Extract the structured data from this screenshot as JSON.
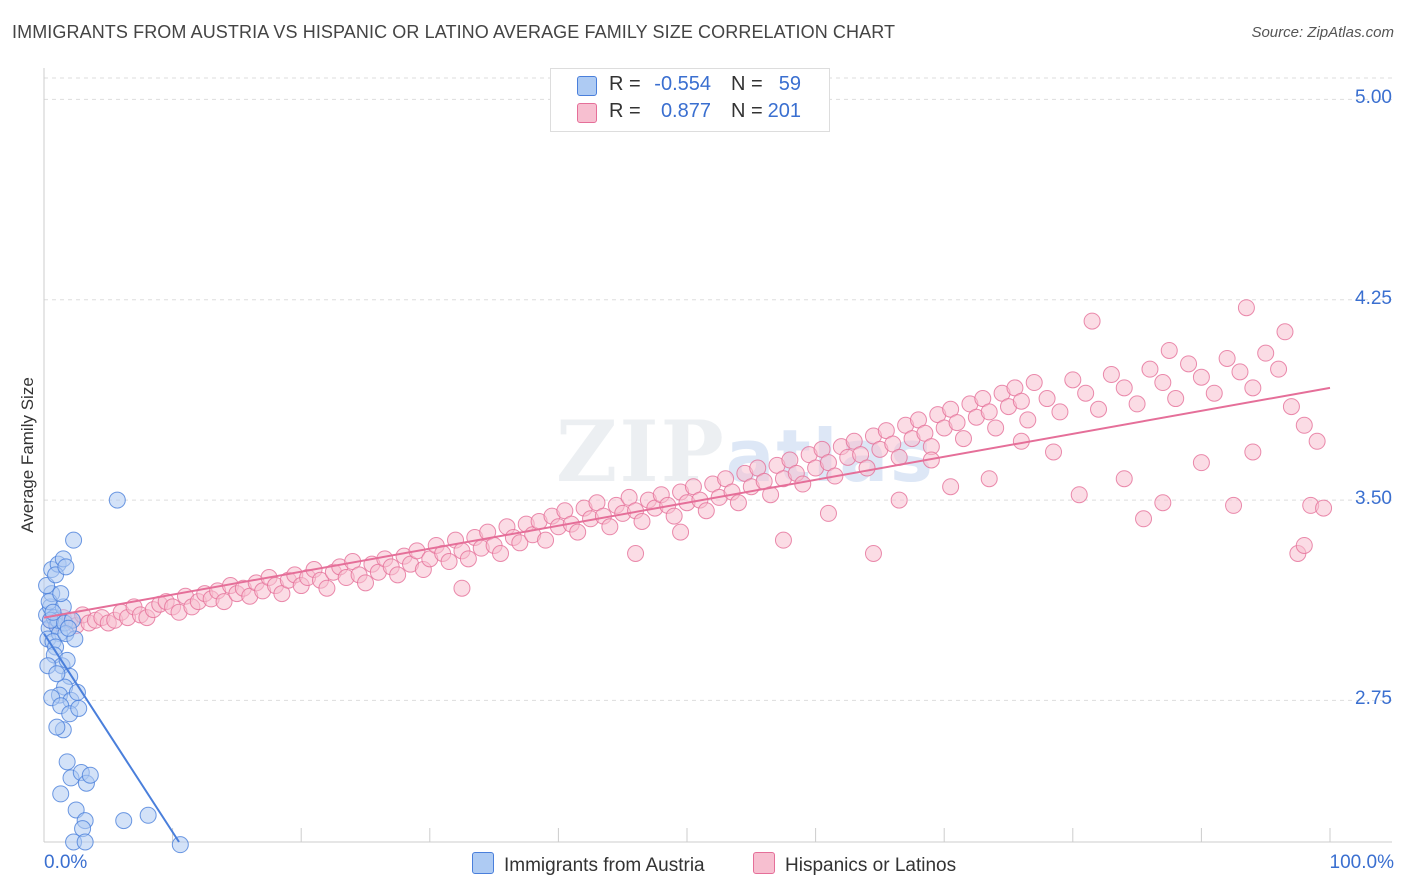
{
  "title": "IMMIGRANTS FROM AUSTRIA VS HISPANIC OR LATINO AVERAGE FAMILY SIZE CORRELATION CHART",
  "source": "Source: ZipAtlas.com",
  "watermark": {
    "zip": "ZIP",
    "atlas": "atlas"
  },
  "colors": {
    "blue": "#4a7fdb",
    "blue_fill": "#aecbf3",
    "pink": "#e56f99",
    "pink_fill": "#f7bfd0",
    "grid": "#dddddd",
    "axis_text": "#3a6fd0"
  },
  "legend_top": {
    "rows": [
      {
        "r_label": "R =",
        "r_value": "-0.554",
        "n_label": "N =",
        "n_value": "59",
        "series": "blue"
      },
      {
        "r_label": "R =",
        "r_value": "0.877",
        "n_label": "N =",
        "n_value": "201",
        "series": "pink"
      }
    ]
  },
  "legend_bottom": [
    {
      "label": "Immigrants from Austria",
      "series": "blue"
    },
    {
      "label": "Hispanics or Latinos",
      "series": "pink"
    }
  ],
  "chart_data": {
    "type": "scatter",
    "title": "IMMIGRANTS FROM AUSTRIA VS HISPANIC OR LATINO AVERAGE FAMILY SIZE CORRELATION CHART",
    "xlabel": "",
    "ylabel": "Average Family Size",
    "xlim": [
      0,
      100
    ],
    "ylim": [
      2.22,
      5.08
    ],
    "x_tick_labels": {
      "left": "0.0%",
      "right": "100.0%"
    },
    "y_ticks": [
      2.75,
      3.5,
      4.25,
      5.0
    ],
    "y_tick_labels": [
      "2.75",
      "3.50",
      "4.25",
      "5.00"
    ],
    "series": [
      {
        "name": "Immigrants from Austria",
        "color": "blue",
        "R": -0.554,
        "N": 59,
        "trend": {
          "x": [
            0,
            10.5
          ],
          "y": [
            3.0,
            2.22
          ]
        },
        "points": [
          [
            0.2,
            3.07
          ],
          [
            0.4,
            3.02
          ],
          [
            0.3,
            2.98
          ],
          [
            0.5,
            3.1
          ],
          [
            0.6,
            3.15
          ],
          [
            0.2,
            3.18
          ],
          [
            0.8,
            3.06
          ],
          [
            1.0,
            3.03
          ],
          [
            1.2,
            3.0
          ],
          [
            0.7,
            2.97
          ],
          [
            0.9,
            2.95
          ],
          [
            1.1,
            3.05
          ],
          [
            0.4,
            3.12
          ],
          [
            1.5,
            3.1
          ],
          [
            1.3,
            3.15
          ],
          [
            0.6,
            3.24
          ],
          [
            1.1,
            3.26
          ],
          [
            0.9,
            3.22
          ],
          [
            1.5,
            3.28
          ],
          [
            1.7,
            3.25
          ],
          [
            2.3,
            3.35
          ],
          [
            0.8,
            2.92
          ],
          [
            1.4,
            2.88
          ],
          [
            1.8,
            2.9
          ],
          [
            2.0,
            2.84
          ],
          [
            1.6,
            2.8
          ],
          [
            1.2,
            2.77
          ],
          [
            2.1,
            2.75
          ],
          [
            2.6,
            2.78
          ],
          [
            0.6,
            2.76
          ],
          [
            1.3,
            2.73
          ],
          [
            2.0,
            2.7
          ],
          [
            2.7,
            2.72
          ],
          [
            1.5,
            2.64
          ],
          [
            1.0,
            2.65
          ],
          [
            1.8,
            2.52
          ],
          [
            2.1,
            2.46
          ],
          [
            2.9,
            2.48
          ],
          [
            3.3,
            2.44
          ],
          [
            3.6,
            2.47
          ],
          [
            1.3,
            2.4
          ],
          [
            2.5,
            2.34
          ],
          [
            3.2,
            2.3
          ],
          [
            3.0,
            2.27
          ],
          [
            6.2,
            2.3
          ],
          [
            8.1,
            2.32
          ],
          [
            2.3,
            2.22
          ],
          [
            3.2,
            2.22
          ],
          [
            10.6,
            2.21
          ],
          [
            5.7,
            3.5
          ],
          [
            0.5,
            3.05
          ],
          [
            1.6,
            3.04
          ],
          [
            2.2,
            3.05
          ],
          [
            0.3,
            2.88
          ],
          [
            1.0,
            2.85
          ],
          [
            1.7,
            3.0
          ],
          [
            0.7,
            3.08
          ],
          [
            2.4,
            2.98
          ],
          [
            1.9,
            3.02
          ]
        ]
      },
      {
        "name": "Hispanics or Latinos",
        "color": "pink",
        "R": 0.877,
        "N": 201,
        "trend": {
          "x": [
            0,
            100
          ],
          "y": [
            3.06,
            3.92
          ]
        },
        "points": [
          [
            0.5,
            3.05
          ],
          [
            1.0,
            3.04
          ],
          [
            1.5,
            3.06
          ],
          [
            2.0,
            3.05
          ],
          [
            2.5,
            3.03
          ],
          [
            3.0,
            3.07
          ],
          [
            3.5,
            3.04
          ],
          [
            4.0,
            3.05
          ],
          [
            4.5,
            3.06
          ],
          [
            5.0,
            3.04
          ],
          [
            5.5,
            3.05
          ],
          [
            6.0,
            3.08
          ],
          [
            6.5,
            3.06
          ],
          [
            7.0,
            3.1
          ],
          [
            7.5,
            3.07
          ],
          [
            8.0,
            3.06
          ],
          [
            8.5,
            3.09
          ],
          [
            9.0,
            3.11
          ],
          [
            9.5,
            3.12
          ],
          [
            10.0,
            3.1
          ],
          [
            10.5,
            3.08
          ],
          [
            11.0,
            3.14
          ],
          [
            11.5,
            3.1
          ],
          [
            12.0,
            3.12
          ],
          [
            12.5,
            3.15
          ],
          [
            13.0,
            3.13
          ],
          [
            13.5,
            3.16
          ],
          [
            14.0,
            3.12
          ],
          [
            14.5,
            3.18
          ],
          [
            15.0,
            3.15
          ],
          [
            15.5,
            3.17
          ],
          [
            16.0,
            3.14
          ],
          [
            16.5,
            3.19
          ],
          [
            17.0,
            3.16
          ],
          [
            17.5,
            3.21
          ],
          [
            18.0,
            3.18
          ],
          [
            18.5,
            3.15
          ],
          [
            19.0,
            3.2
          ],
          [
            19.5,
            3.22
          ],
          [
            20.0,
            3.18
          ],
          [
            20.5,
            3.21
          ],
          [
            21.0,
            3.24
          ],
          [
            21.5,
            3.2
          ],
          [
            22.0,
            3.17
          ],
          [
            22.5,
            3.23
          ],
          [
            23.0,
            3.25
          ],
          [
            23.5,
            3.21
          ],
          [
            24.0,
            3.27
          ],
          [
            24.5,
            3.22
          ],
          [
            25.0,
            3.19
          ],
          [
            25.5,
            3.26
          ],
          [
            26.0,
            3.23
          ],
          [
            26.5,
            3.28
          ],
          [
            27.0,
            3.25
          ],
          [
            27.5,
            3.22
          ],
          [
            28.0,
            3.29
          ],
          [
            28.5,
            3.26
          ],
          [
            29.0,
            3.31
          ],
          [
            29.5,
            3.24
          ],
          [
            30.0,
            3.28
          ],
          [
            30.5,
            3.33
          ],
          [
            31.0,
            3.3
          ],
          [
            31.5,
            3.27
          ],
          [
            32.0,
            3.35
          ],
          [
            32.5,
            3.31
          ],
          [
            33.0,
            3.28
          ],
          [
            33.5,
            3.36
          ],
          [
            34.0,
            3.32
          ],
          [
            34.5,
            3.38
          ],
          [
            35.0,
            3.33
          ],
          [
            35.5,
            3.3
          ],
          [
            36.0,
            3.4
          ],
          [
            36.5,
            3.36
          ],
          [
            37.0,
            3.34
          ],
          [
            37.5,
            3.41
          ],
          [
            38.0,
            3.37
          ],
          [
            38.5,
            3.42
          ],
          [
            39.0,
            3.35
          ],
          [
            39.5,
            3.44
          ],
          [
            40.0,
            3.4
          ],
          [
            40.5,
            3.46
          ],
          [
            41.0,
            3.41
          ],
          [
            41.5,
            3.38
          ],
          [
            42.0,
            3.47
          ],
          [
            42.5,
            3.43
          ],
          [
            43.0,
            3.49
          ],
          [
            43.5,
            3.44
          ],
          [
            44.0,
            3.4
          ],
          [
            44.5,
            3.48
          ],
          [
            45.0,
            3.45
          ],
          [
            45.5,
            3.51
          ],
          [
            46.0,
            3.46
          ],
          [
            46.5,
            3.42
          ],
          [
            47.0,
            3.5
          ],
          [
            47.5,
            3.47
          ],
          [
            48.0,
            3.52
          ],
          [
            48.5,
            3.48
          ],
          [
            49.0,
            3.44
          ],
          [
            49.5,
            3.53
          ],
          [
            50.0,
            3.49
          ],
          [
            50.5,
            3.55
          ],
          [
            51.0,
            3.5
          ],
          [
            51.5,
            3.46
          ],
          [
            52.0,
            3.56
          ],
          [
            52.5,
            3.51
          ],
          [
            53.0,
            3.58
          ],
          [
            53.5,
            3.53
          ],
          [
            54.0,
            3.49
          ],
          [
            54.5,
            3.6
          ],
          [
            55.0,
            3.55
          ],
          [
            55.5,
            3.62
          ],
          [
            56.0,
            3.57
          ],
          [
            56.5,
            3.52
          ],
          [
            57.0,
            3.63
          ],
          [
            57.5,
            3.58
          ],
          [
            58.0,
            3.65
          ],
          [
            58.5,
            3.6
          ],
          [
            59.0,
            3.56
          ],
          [
            59.5,
            3.67
          ],
          [
            60.0,
            3.62
          ],
          [
            60.5,
            3.69
          ],
          [
            61.0,
            3.64
          ],
          [
            61.5,
            3.59
          ],
          [
            62.0,
            3.7
          ],
          [
            62.5,
            3.66
          ],
          [
            63.0,
            3.72
          ],
          [
            63.5,
            3.67
          ],
          [
            64.0,
            3.62
          ],
          [
            64.5,
            3.74
          ],
          [
            65.0,
            3.69
          ],
          [
            65.5,
            3.76
          ],
          [
            66.0,
            3.71
          ],
          [
            66.5,
            3.66
          ],
          [
            67.0,
            3.78
          ],
          [
            67.5,
            3.73
          ],
          [
            68.0,
            3.8
          ],
          [
            68.5,
            3.75
          ],
          [
            69.0,
            3.7
          ],
          [
            69.5,
            3.82
          ],
          [
            70.0,
            3.77
          ],
          [
            70.5,
            3.84
          ],
          [
            71.0,
            3.79
          ],
          [
            71.5,
            3.73
          ],
          [
            72.0,
            3.86
          ],
          [
            72.5,
            3.81
          ],
          [
            73.0,
            3.88
          ],
          [
            73.5,
            3.83
          ],
          [
            74.0,
            3.77
          ],
          [
            74.5,
            3.9
          ],
          [
            75.0,
            3.85
          ],
          [
            75.5,
            3.92
          ],
          [
            76.0,
            3.87
          ],
          [
            76.5,
            3.8
          ],
          [
            77.0,
            3.94
          ],
          [
            78.0,
            3.88
          ],
          [
            79.0,
            3.83
          ],
          [
            80.0,
            3.95
          ],
          [
            81.0,
            3.9
          ],
          [
            82.0,
            3.84
          ],
          [
            83.0,
            3.97
          ],
          [
            84.0,
            3.92
          ],
          [
            85.0,
            3.86
          ],
          [
            86.0,
            3.99
          ],
          [
            87.0,
            3.94
          ],
          [
            88.0,
            3.88
          ],
          [
            89.0,
            4.01
          ],
          [
            90.0,
            3.96
          ],
          [
            91.0,
            3.9
          ],
          [
            92.0,
            4.03
          ],
          [
            93.0,
            3.98
          ],
          [
            94.0,
            3.92
          ],
          [
            95.0,
            4.05
          ],
          [
            96.0,
            3.99
          ],
          [
            97.0,
            3.85
          ],
          [
            98.0,
            3.78
          ],
          [
            99.0,
            3.72
          ],
          [
            93.5,
            4.22
          ],
          [
            96.5,
            4.13
          ],
          [
            81.5,
            4.17
          ],
          [
            87.5,
            4.06
          ],
          [
            84.0,
            3.58
          ],
          [
            90.0,
            3.64
          ],
          [
            94.0,
            3.68
          ],
          [
            98.5,
            3.48
          ],
          [
            99.5,
            3.47
          ],
          [
            92.5,
            3.48
          ],
          [
            87.0,
            3.49
          ],
          [
            85.5,
            3.43
          ],
          [
            97.5,
            3.3
          ],
          [
            98.0,
            3.33
          ],
          [
            64.5,
            3.3
          ],
          [
            46.0,
            3.3
          ],
          [
            32.5,
            3.17
          ],
          [
            66.5,
            3.5
          ],
          [
            70.5,
            3.55
          ],
          [
            57.5,
            3.35
          ],
          [
            49.5,
            3.38
          ],
          [
            73.5,
            3.58
          ],
          [
            76.0,
            3.72
          ],
          [
            78.5,
            3.68
          ],
          [
            80.5,
            3.52
          ],
          [
            69.0,
            3.65
          ],
          [
            61.0,
            3.45
          ]
        ]
      }
    ]
  }
}
